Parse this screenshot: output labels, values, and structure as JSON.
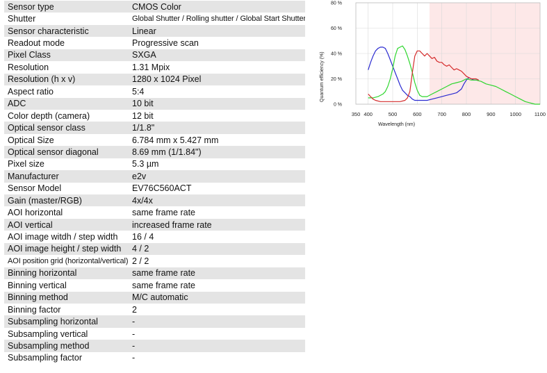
{
  "specs": [
    {
      "label": "Sensor type",
      "value": "CMOS Color"
    },
    {
      "label": "Shutter",
      "value": "Global Shutter / Rolling shutter / Global Start Shutter"
    },
    {
      "label": "Sensor characteristic",
      "value": "Linear"
    },
    {
      "label": "Readout mode",
      "value": "Progressive scan"
    },
    {
      "label": "Pixel Class",
      "value": "SXGA"
    },
    {
      "label": "Resolution",
      "value": "1.31 Mpix"
    },
    {
      "label": "Resolution (h x v)",
      "value": "1280 x 1024 Pixel"
    },
    {
      "label": "Aspect ratio",
      "value": "5:4"
    },
    {
      "label": "ADC",
      "value": "10 bit"
    },
    {
      "label": "Color depth (camera)",
      "value": "12 bit"
    },
    {
      "label": "Optical sensor class",
      "value": "1/1.8\""
    },
    {
      "label": "Optical Size",
      "value": "6.784 mm x 5.427 mm"
    },
    {
      "label": "Optical sensor diagonal",
      "value": "8.69 mm (1/1.84\")"
    },
    {
      "label": "Pixel size",
      "value": "5.3 µm"
    },
    {
      "label": "Manufacturer",
      "value": "e2v"
    },
    {
      "label": "Sensor Model",
      "value": "EV76C560ACT"
    },
    {
      "label": "Gain (master/RGB)",
      "value": "4x/4x"
    },
    {
      "label": "AOI horizontal",
      "value": "same frame rate"
    },
    {
      "label": "AOI vertical",
      "value": "increased frame rate"
    },
    {
      "label": "AOI image witdh / step width",
      "value": "16 / 4"
    },
    {
      "label": "AOI image height / step width",
      "value": "4 / 2"
    },
    {
      "label": "AOI position grid (horizontal/vertical)",
      "value": "2 / 2"
    },
    {
      "label": "Binning horizontal",
      "value": "same frame rate"
    },
    {
      "label": "Binning vertical",
      "value": "same frame rate"
    },
    {
      "label": "Binning method",
      "value": "M/C automatic"
    },
    {
      "label": "Binning factor",
      "value": "2"
    },
    {
      "label": "Subsampling horizontal",
      "value": "-"
    },
    {
      "label": "Subsampling vertical",
      "value": "-"
    },
    {
      "label": "Subsampling method",
      "value": "-"
    },
    {
      "label": "Subsampling factor",
      "value": "-"
    }
  ],
  "colors": {
    "row_alt": "#e4e4e4",
    "nir_region": "#fde8e8",
    "blue": "#2a2ad0",
    "green": "#2dd62d",
    "red": "#d42a2a",
    "grid": "#d9d9d9"
  },
  "chart_data": {
    "type": "line",
    "xlabel": "Wavelength (nm)",
    "ylabel": "Quantum efficiency (%)",
    "xlim": [
      350,
      1100
    ],
    "ylim": [
      0,
      80
    ],
    "x_ticks": [
      "350",
      "400",
      "500",
      "600",
      "700",
      "800",
      "900",
      "1000",
      "1100"
    ],
    "y_ticks": [
      "0 %",
      "20 %",
      "40 %",
      "60 %",
      "80 %"
    ],
    "grid": true,
    "shaded_region": {
      "from": 650,
      "to": 1100
    },
    "series": [
      {
        "color_key": "blue",
        "points": [
          [
            400,
            27
          ],
          [
            410,
            33
          ],
          [
            420,
            38
          ],
          [
            430,
            42
          ],
          [
            440,
            44
          ],
          [
            450,
            45
          ],
          [
            460,
            45
          ],
          [
            470,
            44
          ],
          [
            480,
            40
          ],
          [
            490,
            35
          ],
          [
            500,
            30
          ],
          [
            510,
            25
          ],
          [
            520,
            20
          ],
          [
            530,
            15
          ],
          [
            540,
            11
          ],
          [
            550,
            9
          ],
          [
            560,
            7
          ],
          [
            570,
            6
          ],
          [
            580,
            4
          ],
          [
            590,
            3
          ],
          [
            600,
            3
          ],
          [
            610,
            3
          ],
          [
            620,
            3
          ],
          [
            640,
            3
          ],
          [
            660,
            4
          ],
          [
            680,
            5
          ],
          [
            700,
            6
          ],
          [
            720,
            7
          ],
          [
            740,
            8
          ],
          [
            760,
            9
          ],
          [
            780,
            12
          ],
          [
            790,
            16
          ],
          [
            800,
            19
          ],
          [
            810,
            21
          ],
          [
            820,
            20
          ],
          [
            830,
            19
          ],
          [
            840,
            19
          ],
          [
            850,
            19
          ]
        ]
      },
      {
        "color_key": "green",
        "points": [
          [
            400,
            5
          ],
          [
            420,
            5
          ],
          [
            440,
            6
          ],
          [
            460,
            8
          ],
          [
            470,
            10
          ],
          [
            480,
            14
          ],
          [
            490,
            20
          ],
          [
            500,
            28
          ],
          [
            510,
            38
          ],
          [
            520,
            44
          ],
          [
            530,
            45
          ],
          [
            540,
            46
          ],
          [
            550,
            43
          ],
          [
            560,
            38
          ],
          [
            570,
            32
          ],
          [
            580,
            25
          ],
          [
            590,
            17
          ],
          [
            600,
            11
          ],
          [
            610,
            7
          ],
          [
            620,
            6
          ],
          [
            640,
            6
          ],
          [
            660,
            8
          ],
          [
            680,
            10
          ],
          [
            700,
            12
          ],
          [
            720,
            14
          ],
          [
            740,
            16
          ],
          [
            760,
            17
          ],
          [
            780,
            18
          ],
          [
            800,
            20
          ],
          [
            820,
            19
          ],
          [
            840,
            19
          ],
          [
            860,
            18
          ],
          [
            880,
            16
          ],
          [
            900,
            15
          ],
          [
            920,
            14
          ],
          [
            940,
            12
          ],
          [
            960,
            10
          ],
          [
            980,
            8
          ],
          [
            1000,
            6
          ],
          [
            1020,
            4
          ],
          [
            1040,
            2
          ],
          [
            1060,
            1
          ],
          [
            1080,
            0
          ],
          [
            1100,
            0
          ]
        ]
      },
      {
        "color_key": "red",
        "points": [
          [
            400,
            8
          ],
          [
            410,
            6
          ],
          [
            420,
            4
          ],
          [
            430,
            3
          ],
          [
            450,
            2
          ],
          [
            470,
            2
          ],
          [
            490,
            2
          ],
          [
            510,
            2
          ],
          [
            530,
            2
          ],
          [
            550,
            3
          ],
          [
            560,
            5
          ],
          [
            570,
            10
          ],
          [
            580,
            25
          ],
          [
            590,
            38
          ],
          [
            600,
            42
          ],
          [
            610,
            42
          ],
          [
            620,
            40
          ],
          [
            630,
            38
          ],
          [
            640,
            40
          ],
          [
            650,
            38
          ],
          [
            660,
            36
          ],
          [
            670,
            37
          ],
          [
            680,
            34
          ],
          [
            690,
            33
          ],
          [
            700,
            33
          ],
          [
            710,
            31
          ],
          [
            720,
            30
          ],
          [
            730,
            31
          ],
          [
            740,
            29
          ],
          [
            750,
            27
          ],
          [
            760,
            28
          ],
          [
            770,
            27
          ],
          [
            780,
            26
          ],
          [
            790,
            24
          ],
          [
            800,
            22
          ],
          [
            810,
            21
          ],
          [
            820,
            20
          ],
          [
            830,
            20
          ],
          [
            840,
            20
          ],
          [
            850,
            19
          ]
        ]
      }
    ]
  }
}
